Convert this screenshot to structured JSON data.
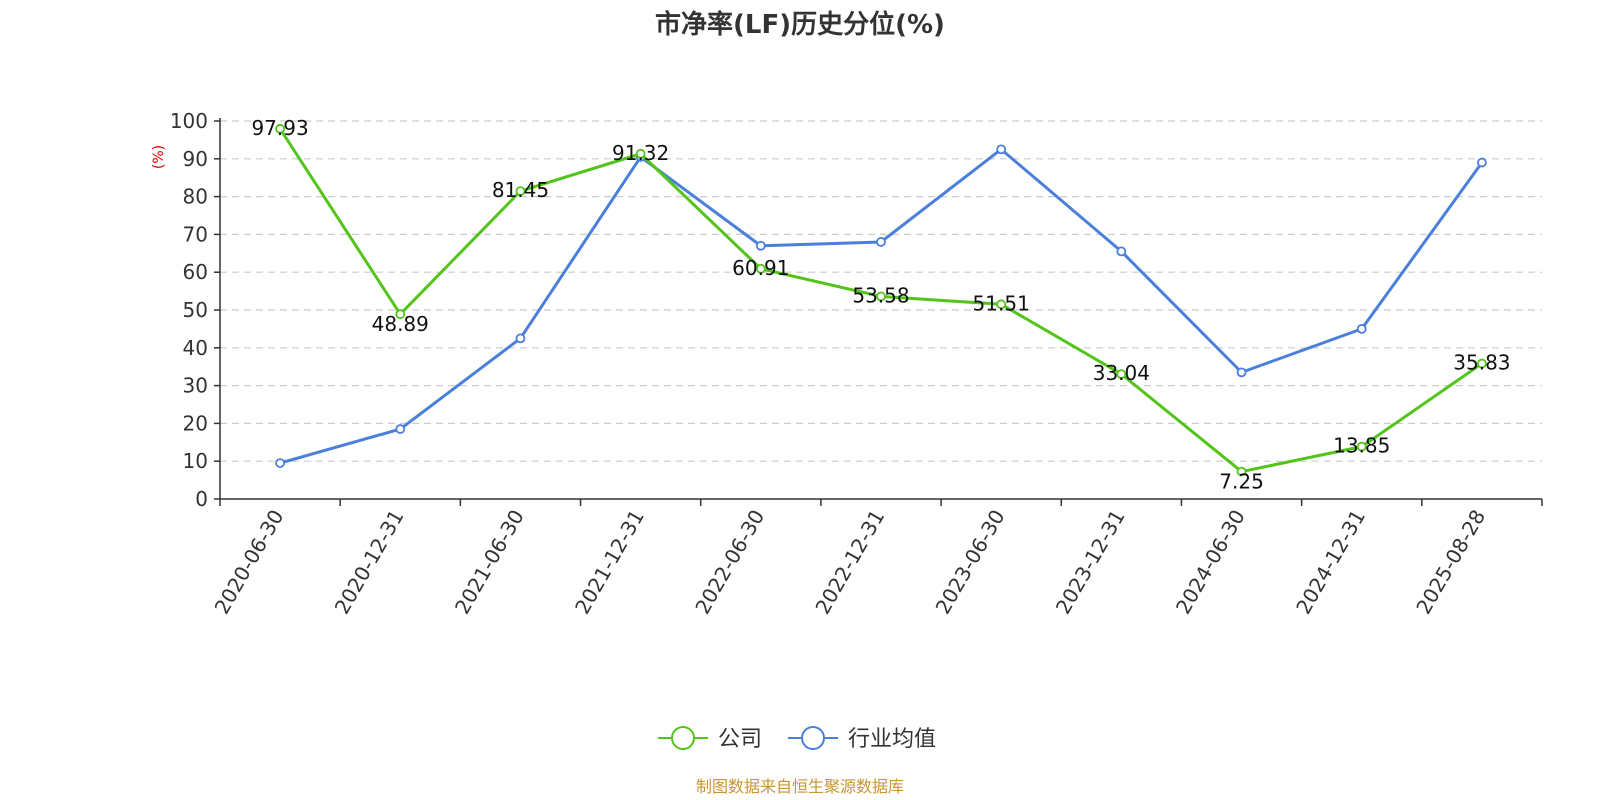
{
  "chart_data": {
    "type": "line",
    "title": "市净率(LF)历史分位(%)",
    "ylabel": "(%)",
    "xlabel": "",
    "ylim": [
      0,
      100
    ],
    "yticks": [
      0,
      10,
      20,
      30,
      40,
      50,
      60,
      70,
      80,
      90,
      100
    ],
    "grid": true,
    "legend_position": "bottom-center",
    "categories": [
      "2020-06-30",
      "2020-12-31",
      "2021-06-30",
      "2021-12-31",
      "2022-06-30",
      "2022-12-31",
      "2023-06-30",
      "2023-12-31",
      "2024-06-30",
      "2024-12-31",
      "2025-08-28"
    ],
    "series": [
      {
        "name": "公司",
        "color": "#52c41a",
        "show_labels": true,
        "values": [
          97.93,
          48.89,
          81.45,
          91.32,
          60.91,
          53.58,
          51.51,
          33.04,
          7.25,
          13.85,
          35.83
        ]
      },
      {
        "name": "行业均值",
        "color": "#4a7fdb",
        "show_labels": false,
        "values": [
          9.5,
          18.5,
          42.5,
          90.5,
          67.0,
          68.0,
          92.5,
          65.5,
          33.5,
          45.0,
          89.0
        ]
      }
    ],
    "source": "制图数据来自恒生聚源数据库",
    "colors": {
      "ylabel": "#e00000",
      "source": "#c8962d",
      "axis": "#333333",
      "grid": "#cccccc"
    }
  }
}
